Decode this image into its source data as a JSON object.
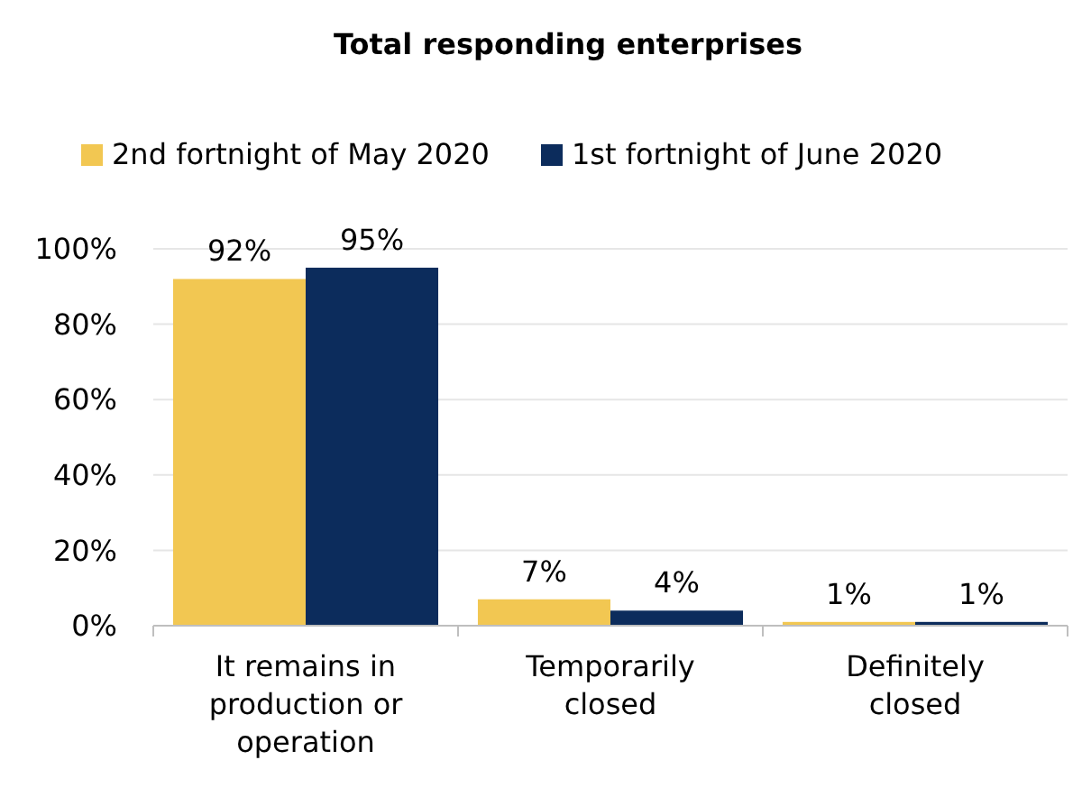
{
  "chart_data": {
    "type": "bar",
    "title": "Total responding enterprises",
    "categories": [
      "It remains in production or operation",
      "Temporarily closed",
      "Definitely closed"
    ],
    "series": [
      {
        "name": "2nd fortnight of May 2020",
        "color": "#f2c752",
        "values": [
          92,
          7,
          1
        ],
        "value_labels": [
          "92%",
          "7%",
          "1%"
        ]
      },
      {
        "name": "1st fortnight of June 2020",
        "color": "#0c2c5c",
        "values": [
          95,
          4,
          1
        ],
        "value_labels": [
          "95%",
          "4%",
          "1%"
        ]
      }
    ],
    "ylim": [
      0,
      100
    ],
    "yticks": [
      {
        "value": 0,
        "label": "0%"
      },
      {
        "value": 20,
        "label": "20%"
      },
      {
        "value": 40,
        "label": "40%"
      },
      {
        "value": 60,
        "label": "60%"
      },
      {
        "value": 80,
        "label": "80%"
      },
      {
        "value": 100,
        "label": "100%"
      }
    ],
    "grid": "y",
    "legend": "top"
  }
}
